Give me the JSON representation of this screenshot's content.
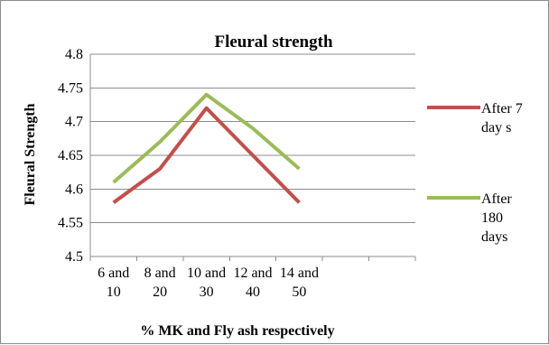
{
  "chart_data": {
    "type": "line",
    "title": "Fleural strength",
    "xlabel": "%  MK and Fly ash respectively",
    "ylabel": "Fleural Strength",
    "categories": [
      "6 and 10",
      "8 and 20",
      "10 and 30",
      "12 and 40",
      "14 and 50"
    ],
    "category_lines": [
      [
        "6 and",
        "10"
      ],
      [
        "8 and",
        "20"
      ],
      [
        "10 and",
        "30"
      ],
      [
        "12 and",
        "40"
      ],
      [
        "14 and",
        "50"
      ]
    ],
    "empty_category_slots": 2,
    "ylim": [
      4.5,
      4.8
    ],
    "yticks": [
      "4.5",
      "4.55",
      "4.6",
      "4.65",
      "4.7",
      "4.75",
      "4.8"
    ],
    "grid": true,
    "legend_position": "right",
    "series": [
      {
        "name": "After 7 day s",
        "label_lines": [
          "After 7",
          "day s"
        ],
        "color": "#c0504d",
        "values": [
          4.58,
          4.63,
          4.72,
          4.65,
          4.58
        ]
      },
      {
        "name": "After 180 days",
        "label_lines": [
          "After",
          "180",
          "days"
        ],
        "color": "#9bbb59",
        "values": [
          4.61,
          4.67,
          4.74,
          4.69,
          4.63
        ]
      }
    ]
  }
}
